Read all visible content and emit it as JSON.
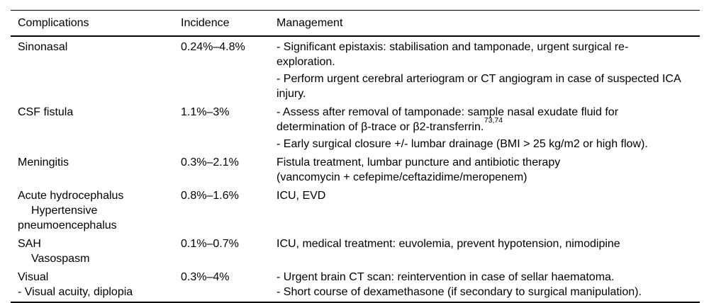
{
  "page": {
    "background_color": "#ffffff",
    "text_color": "#000000",
    "rule_color": "#000000"
  },
  "table": {
    "headers": [
      {
        "label": "Complications"
      },
      {
        "label": "Incidence"
      },
      {
        "label": "Management"
      }
    ],
    "rows": [
      {
        "complication_lines": [
          {
            "text": "Sinonasal",
            "indent": false
          }
        ],
        "incidence": "0.24%–4.8%",
        "management_blocks": [
          {
            "lines": [
              {
                "text": "- Significant epistaxis: stabilisation and tamponade, urgent surgical re-"
              },
              {
                "text": "exploration."
              }
            ]
          },
          {
            "lines": [
              {
                "text": "- Perform urgent cerebral arteriogram or CT angiogram in case of suspected ICA"
              },
              {
                "text": "injury."
              }
            ]
          }
        ]
      },
      {
        "complication_lines": [
          {
            "text": "CSF fistula",
            "indent": false
          }
        ],
        "incidence": "1.1%–3%",
        "management_blocks": [
          {
            "lines": [
              {
                "text": "- Assess after removal of tamponade: sample nasal exudate fluid for"
              },
              {
                "text": "determination of β-trace or β2-transferrin.",
                "sup": "73,74"
              }
            ]
          },
          {
            "lines": [
              {
                "text": "- Early surgical closure +/- lumbar drainage (BMI > 25 kg/m2 or high flow)."
              }
            ]
          }
        ]
      },
      {
        "complication_lines": [
          {
            "text": "Meningitis",
            "indent": false
          }
        ],
        "incidence": "0.3%–2.1%",
        "management_blocks": [
          {
            "lines": [
              {
                "text": "Fistula treatment, lumbar puncture and antibiotic therapy"
              },
              {
                "text": "(vancomycin + cefepime/ceftazidime/meropenem)"
              }
            ]
          }
        ]
      },
      {
        "complication_lines": [
          {
            "text": "Acute hydrocephalus",
            "indent": false
          },
          {
            "text": "Hypertensive",
            "indent": true
          },
          {
            "text": "pneumoencephalus",
            "indent": false
          }
        ],
        "incidence": "0.8%–1.6%",
        "management_blocks": [
          {
            "lines": [
              {
                "text": "ICU, EVD"
              }
            ]
          }
        ]
      },
      {
        "complication_lines": [
          {
            "text": "SAH",
            "indent": false
          },
          {
            "text": "Vasospasm",
            "indent": true
          }
        ],
        "incidence": "0.1%–0.7%",
        "management_blocks": [
          {
            "lines": [
              {
                "text": "ICU, medical treatment: euvolemia, prevent hypotension, nimodipine"
              }
            ]
          }
        ]
      },
      {
        "complication_lines": [
          {
            "text": "Visual",
            "indent": false
          },
          {
            "text": "- Visual acuity, diplopia",
            "indent": false
          }
        ],
        "incidence": "0.3%–4%",
        "management_blocks": [
          {
            "lines": [
              {
                "text": "- Urgent brain CT scan: reintervention in case of sellar haematoma."
              },
              {
                "text": "- Short course of dexamethasone (if secondary to surgical manipulation)."
              }
            ]
          }
        ]
      }
    ]
  }
}
